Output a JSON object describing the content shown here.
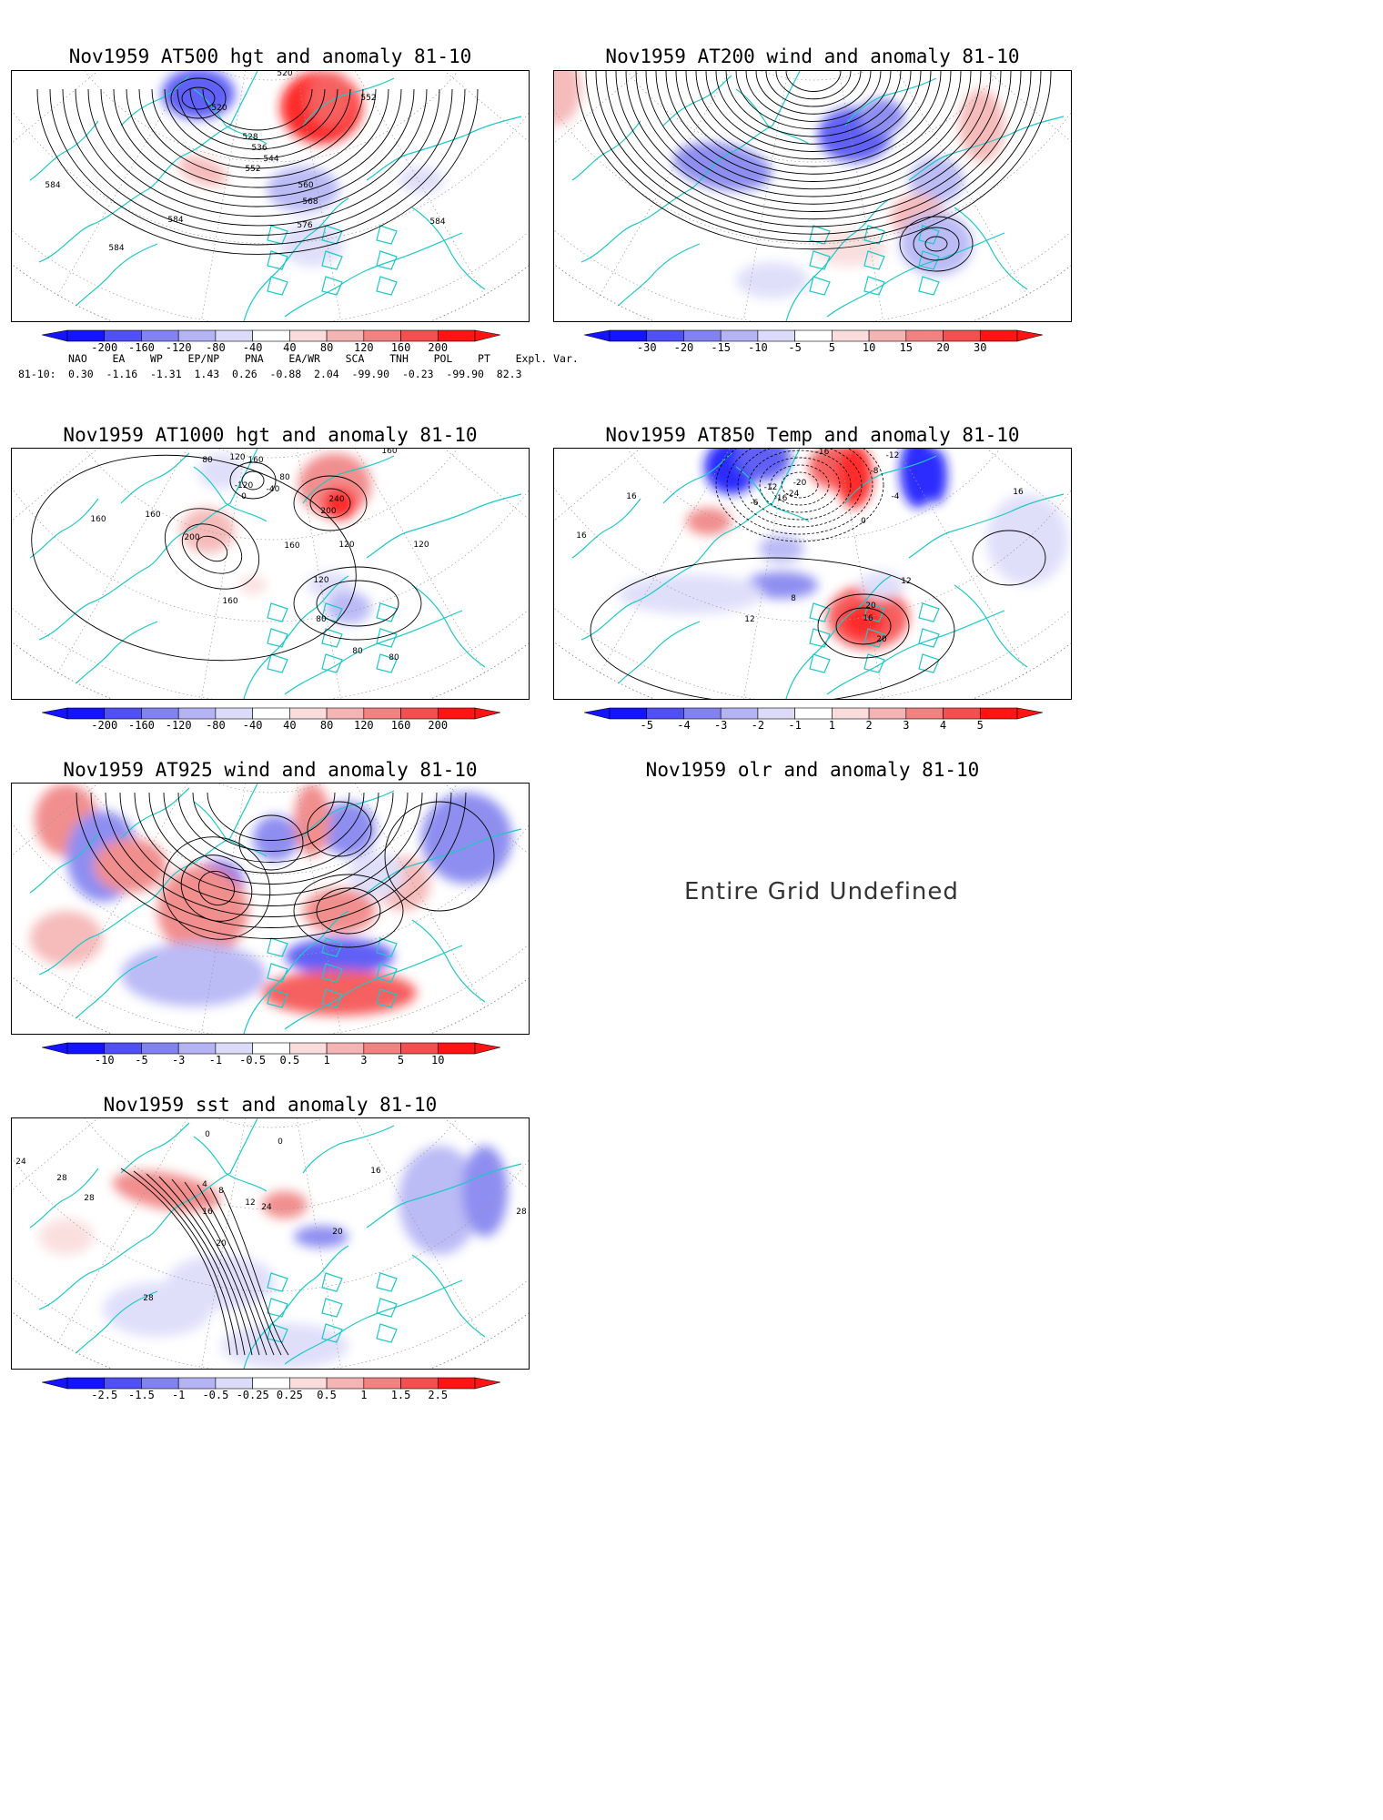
{
  "panels": [
    {
      "id": "p500",
      "title": "Nov1959 AT500 hgt and anomaly 81-10",
      "contour_labels": [
        "520",
        "520",
        "528",
        "536",
        "544",
        "552",
        "552",
        "560",
        "568",
        "576",
        "584",
        "584",
        "584",
        "584"
      ],
      "colorbar_ticks": [
        "-200",
        "-160",
        "-120",
        "-80",
        "-40",
        "40",
        "80",
        "120",
        "160",
        "200"
      ]
    },
    {
      "id": "p200",
      "title": "Nov1959 AT200 wind and anomaly 81-10",
      "contour_labels": [],
      "colorbar_ticks": [
        "-30",
        "-20",
        "-15",
        "-10",
        "-5",
        "5",
        "10",
        "15",
        "20",
        "30"
      ]
    },
    {
      "id": "p1000",
      "title": "Nov1959 AT1000 hgt and anomaly 81-10",
      "contour_labels": [
        "80",
        "120",
        "160",
        "160",
        "-120",
        "-40",
        "0",
        "80",
        "160",
        "160",
        "200",
        "240",
        "200",
        "160",
        "120",
        "120",
        "120",
        "160",
        "80",
        "80",
        "80"
      ],
      "colorbar_ticks": [
        "-200",
        "-160",
        "-120",
        "-80",
        "-40",
        "40",
        "80",
        "120",
        "160",
        "200"
      ]
    },
    {
      "id": "p850",
      "title": "Nov1959 AT850 Temp and anomaly 81-10",
      "contour_labels": [
        "-16",
        "-12",
        "-20",
        "-24",
        "-12",
        "-16",
        "-8",
        "-6",
        "-4",
        "0",
        "16",
        "16",
        "16",
        "8",
        "12",
        "12",
        "16",
        "20",
        "20"
      ],
      "colorbar_ticks": [
        "-5",
        "-4",
        "-3",
        "-2",
        "-1",
        "1",
        "2",
        "3",
        "4",
        "5"
      ]
    },
    {
      "id": "p925",
      "title": "Nov1959 AT925 wind and anomaly 81-10",
      "contour_labels": [],
      "colorbar_ticks": [
        "-10",
        "-5",
        "-3",
        "-1",
        "-0.5",
        "0.5",
        "1",
        "3",
        "5",
        "10"
      ]
    },
    {
      "id": "polr",
      "title": "Nov1959 olr and anomaly 81-10",
      "message": "Entire Grid Undefined"
    },
    {
      "id": "psst",
      "title": "Nov1959 sst and anomaly 81-10",
      "contour_labels": [
        "24",
        "28",
        "28",
        "0",
        "0",
        "4",
        "8",
        "12",
        "16",
        "20",
        "24",
        "28",
        "28",
        "20",
        "16"
      ],
      "colorbar_ticks": [
        "-2.5",
        "-1.5",
        "-1",
        "-0.5",
        "-0.25",
        "0.25",
        "0.5",
        "1",
        "1.5",
        "2.5"
      ]
    }
  ],
  "teleconnection": {
    "headers": [
      "NAO",
      "EA",
      "WP",
      "EP/NP",
      "PNA",
      "EA/WR",
      "SCA",
      "TNH",
      "POL",
      "PT",
      "Expl. Var."
    ],
    "row_label": "81-10:",
    "values": [
      "0.30",
      "-1.16",
      "-1.31",
      "1.43",
      "0.26",
      "-0.88",
      "2.04",
      "-99.90",
      "-0.23",
      "-99.90",
      "82.3"
    ]
  },
  "colors": {
    "blue": [
      "#1414ff",
      "#5050f5",
      "#8282f0",
      "#b4b4f5",
      "#dcdcfa"
    ],
    "red": [
      "#fadcdc",
      "#f5b4b4",
      "#f08282",
      "#f55050",
      "#ff1414"
    ],
    "coast": "#1ec8c8"
  }
}
